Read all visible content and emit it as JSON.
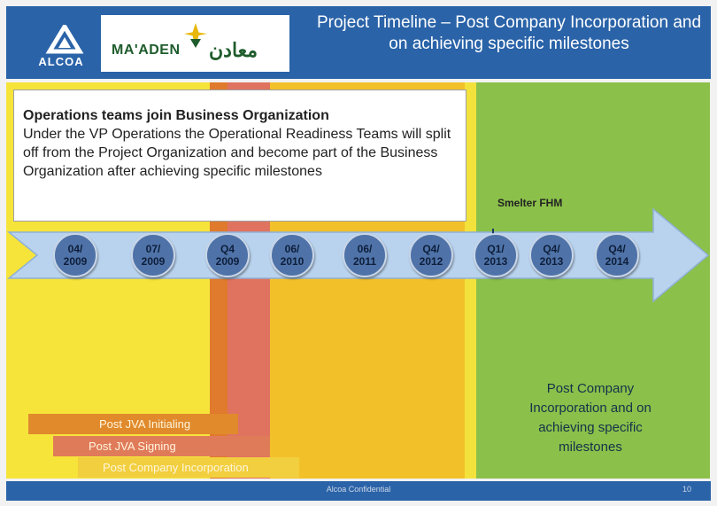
{
  "header": {
    "company_logo_text": "ALCOA",
    "partner_logo_latin": "MA'ADEN",
    "partner_logo_arabic": "معادن",
    "title": "Project Timeline – Post Company Incorporation and on achieving specific milestones"
  },
  "callout": {
    "title": "Operations teams join Business Organization",
    "body": "Under the VP Operations the Operational Readiness Teams will split off from the Project Organization and become part of the Business Organization after achieving specific milestones"
  },
  "timeline": {
    "marker_label": "Smelter FHM",
    "milestones": [
      {
        "line1": "04/",
        "line2": "2009"
      },
      {
        "line1": "07/",
        "line2": "2009"
      },
      {
        "line1": "Q4",
        "line2": "2009"
      },
      {
        "line1": "06/",
        "line2": "2010"
      },
      {
        "line1": "06/",
        "line2": "2011"
      },
      {
        "line1": "Q4/",
        "line2": "2012"
      },
      {
        "line1": "Q1/",
        "line2": "2013"
      },
      {
        "line1": "Q4/",
        "line2": "2013"
      },
      {
        "line1": "Q4/",
        "line2": "2014"
      }
    ]
  },
  "phases": {
    "post_jva_initialing": "Post JVA Initialing",
    "post_jva_signing": "Post JVA Signing",
    "post_company_incorporation": "Post Company Incorporation",
    "green_zone_label": "Post Company Incorporation and on achieving specific milestones"
  },
  "footer": {
    "confidential": "Alcoa Confidential",
    "page_number": "10"
  },
  "colors": {
    "header_blue": "#2a63a8",
    "zone_yellow": "#f6e43a",
    "zone_orange": "#e07a2c",
    "zone_gold": "#f2c12a",
    "zone_green": "#8bc04a",
    "arrow_blue": "#b9d3ee",
    "node_blue": "#4f73a8"
  }
}
